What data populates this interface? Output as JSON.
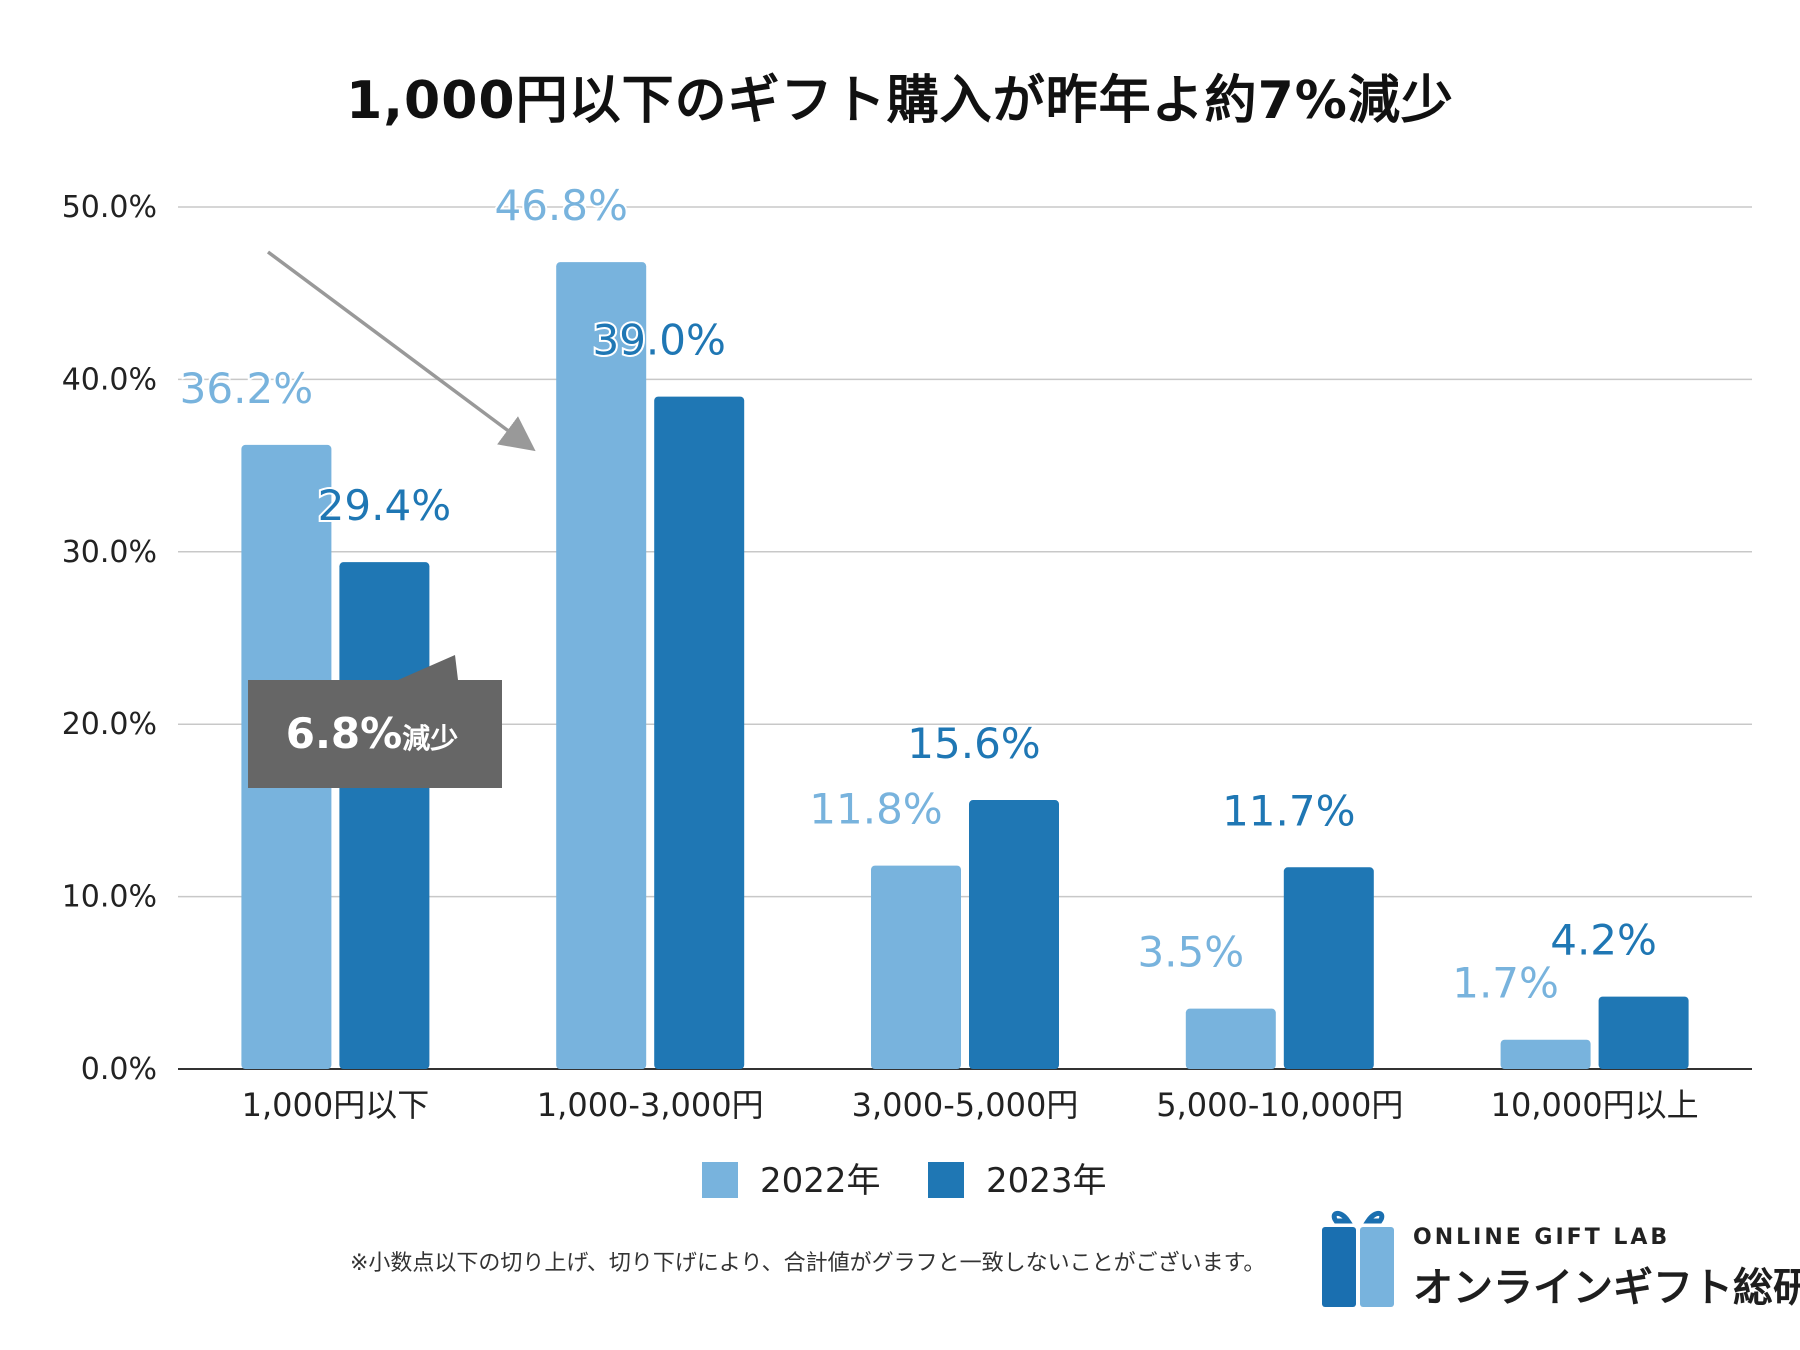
{
  "colors": {
    "series_2022": "#78b3dd",
    "series_2023": "#1f77b4",
    "annotation_box": "#666666"
  },
  "chart_data": {
    "type": "bar",
    "title": "1,000円以下のギフト購入が昨年よ約7%減少",
    "categories": [
      "1,000円以下",
      "1,000-3,000円",
      "3,000-5,000円",
      "5,000-10,000円",
      "10,000円以上"
    ],
    "series": [
      {
        "name": "2022年",
        "values": [
          36.2,
          46.8,
          11.8,
          3.5,
          1.7
        ],
        "labels": [
          "36.2%",
          "46.8%",
          "11.8%",
          "3.5%",
          "1.7%"
        ]
      },
      {
        "name": "2023年",
        "values": [
          29.4,
          39.0,
          15.6,
          11.7,
          4.2
        ],
        "labels": [
          "29.4%",
          "39.0%",
          "15.6%",
          "11.7%",
          "4.2%"
        ]
      }
    ],
    "ylim": [
      0,
      50
    ],
    "yticks": [
      "0.0%",
      "10.0%",
      "20.0%",
      "30.0%",
      "40.0%",
      "50.0%"
    ],
    "grid": true,
    "legend": "bottom-center",
    "annotation": {
      "value": "6.8%",
      "suffix": "減少",
      "category": "1,000円以下"
    }
  },
  "footnote": "※小数点以下の切り上げ、切り下げにより、合計値がグラフと一致しないことがございます。",
  "logo": {
    "name_en": "ONLINE GIFT LAB",
    "name_jp": "オンラインギフト総研"
  }
}
